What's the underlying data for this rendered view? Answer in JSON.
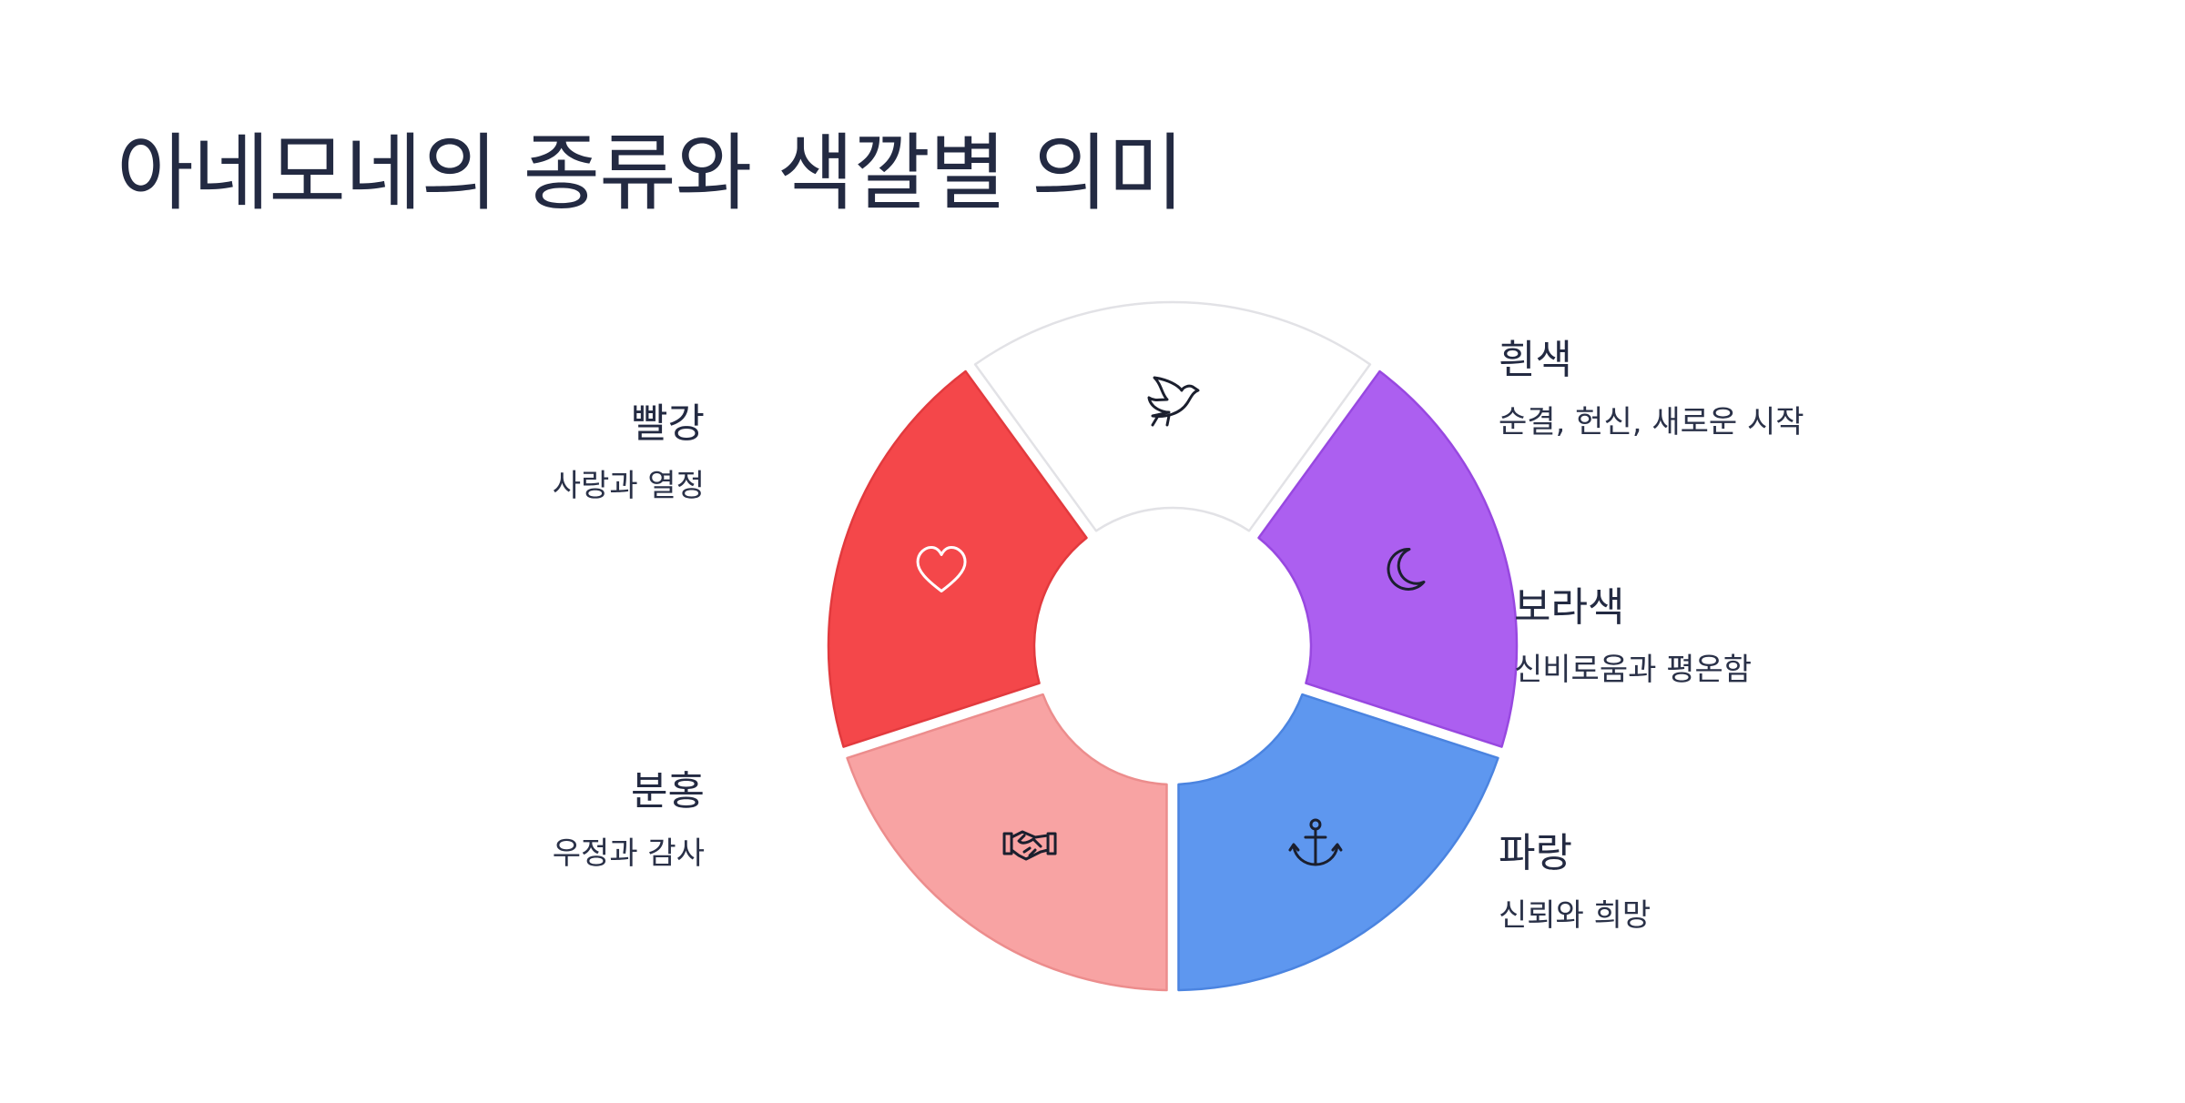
{
  "title": "아네모네의 종류와 색깔별 의미",
  "segments": [
    {
      "key": "white",
      "name": "흰색",
      "meaning": "순결, 헌신, 새로운 시작",
      "icon": "dove-icon",
      "fill": "#ffffff",
      "stroke": "#e2e2e6"
    },
    {
      "key": "purple",
      "name": "보라색",
      "meaning": "신비로움과 평온함",
      "icon": "moon-icon",
      "fill": "#ac5ff0",
      "stroke": "#9848e0"
    },
    {
      "key": "blue",
      "name": "파랑",
      "meaning": "신뢰와 희망",
      "icon": "anchor-icon",
      "fill": "#5e97ef",
      "stroke": "#4b84e0"
    },
    {
      "key": "pink",
      "name": "분홍",
      "meaning": "우정과 감사",
      "icon": "handshake-icon",
      "fill": "#f8a3a3",
      "stroke": "#ec8d8d"
    },
    {
      "key": "red",
      "name": "빨강",
      "meaning": "사랑과 열정",
      "icon": "heart-icon",
      "fill": "#f4474a",
      "stroke": "#e23a3e"
    }
  ]
}
